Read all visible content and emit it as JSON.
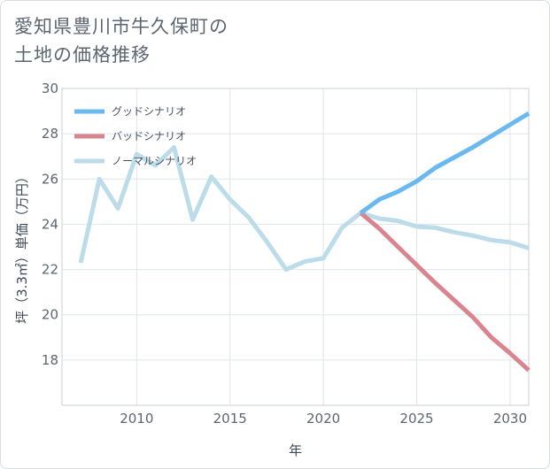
{
  "page": {
    "title_line1": "愛知県豊川市牛久保町の",
    "title_line2": "土地の価格推移"
  },
  "chart_data": {
    "type": "line",
    "xlabel": "年",
    "ylabel": "坪（3.3㎡）単価（万円）",
    "xlim": [
      2006,
      2031
    ],
    "ylim": [
      16,
      30
    ],
    "xticks": [
      2010,
      2015,
      2020,
      2025,
      2030
    ],
    "yticks": [
      18,
      20,
      22,
      24,
      26,
      28,
      30
    ],
    "legend_position": "top-left",
    "series": [
      {
        "name": "グッドシナリオ",
        "color": "#6ab8f0",
        "x": [
          2022,
          2023,
          2024,
          2025,
          2026,
          2027,
          2028,
          2029,
          2030,
          2031
        ],
        "y": [
          24.5,
          25.1,
          25.45,
          25.9,
          26.5,
          26.95,
          27.4,
          27.9,
          28.4,
          28.9
        ]
      },
      {
        "name": "バッドシナリオ",
        "color": "#d9858f",
        "x": [
          2022,
          2023,
          2024,
          2025,
          2026,
          2027,
          2028,
          2029,
          2030,
          2031
        ],
        "y": [
          24.5,
          23.8,
          23.0,
          22.2,
          21.4,
          20.65,
          19.9,
          19.0,
          18.3,
          17.55
        ]
      },
      {
        "name": "ノーマルシナリオ",
        "color": "#bcdcea",
        "x": [
          2007,
          2008,
          2009,
          2010,
          2011,
          2012,
          2013,
          2014,
          2015,
          2016,
          2017,
          2018,
          2019,
          2020,
          2021,
          2022,
          2023,
          2024,
          2025,
          2026,
          2027,
          2028,
          2029,
          2030,
          2031
        ],
        "y": [
          22.3,
          26.0,
          24.7,
          27.1,
          26.6,
          27.4,
          24.2,
          26.1,
          25.1,
          24.3,
          23.2,
          22.0,
          22.35,
          22.5,
          23.85,
          24.5,
          24.25,
          24.15,
          23.9,
          23.85,
          23.65,
          23.5,
          23.3,
          23.2,
          22.95
        ]
      }
    ]
  }
}
